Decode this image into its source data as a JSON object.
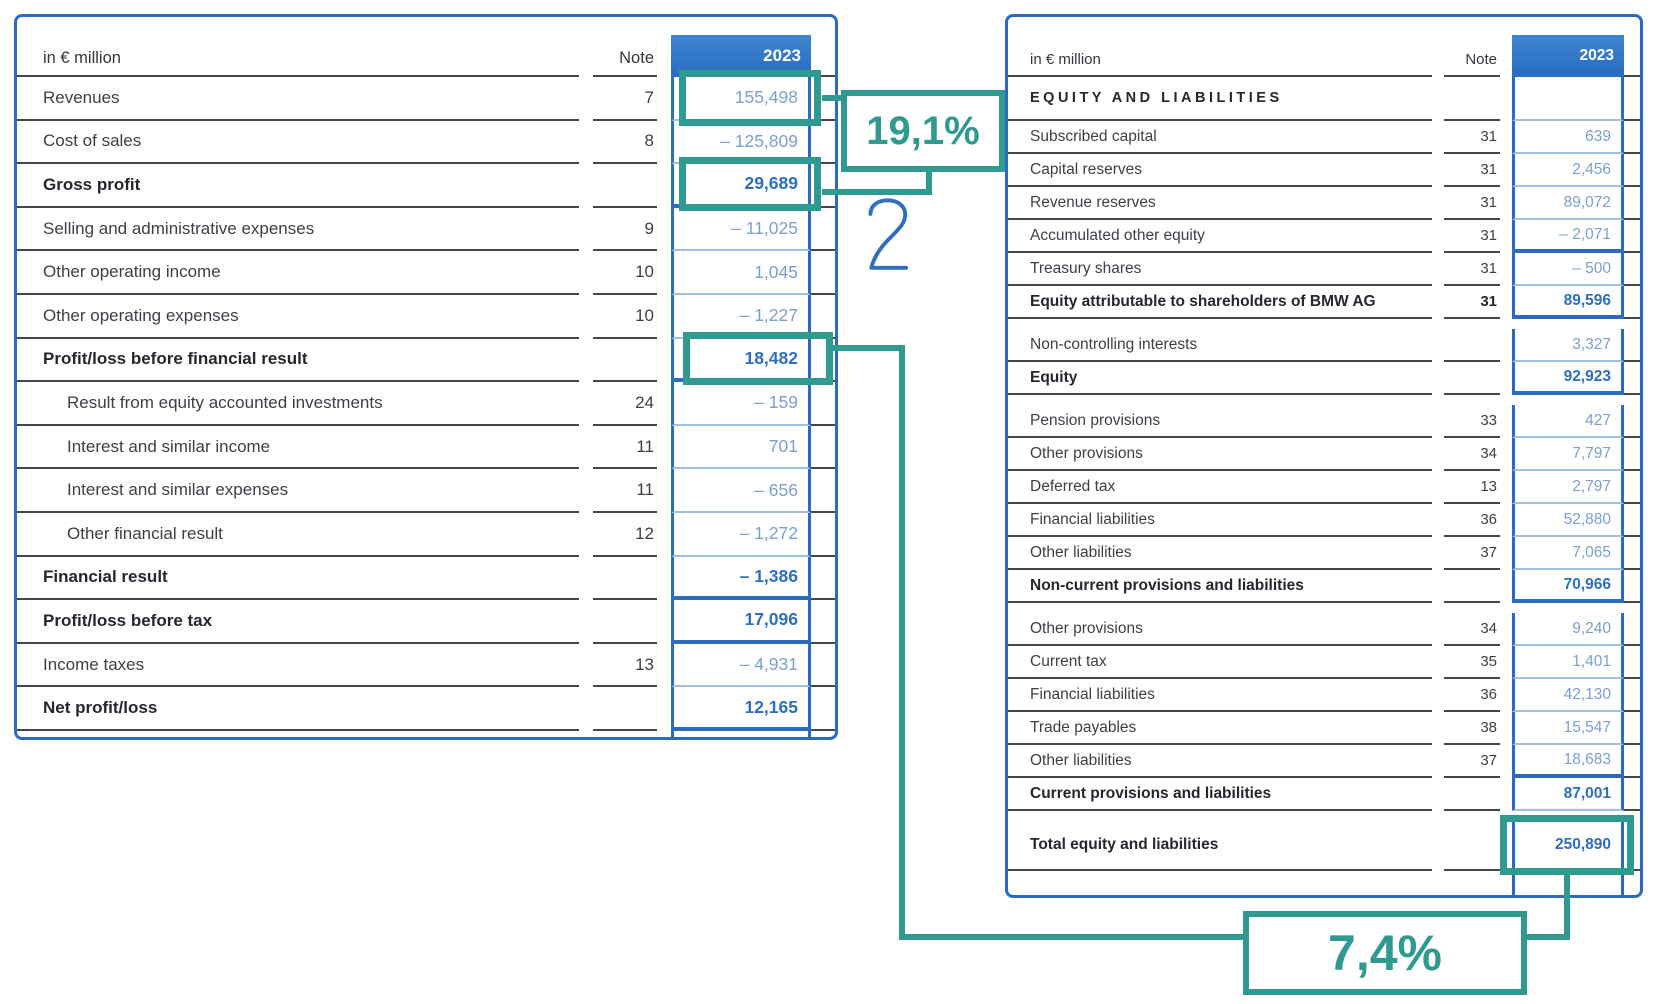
{
  "colors": {
    "table_blue": "#2B6CC1",
    "value_blue": "#7AA0D2",
    "value_bold_blue": "#2E6FC0",
    "accent_teal": "#2E9A90"
  },
  "annotations": {
    "revenue_margin_pct": "19,1%",
    "total_growth_pct": "7,4%",
    "handwritten_note": "2"
  },
  "income_statement": {
    "header": {
      "unit": "in € million",
      "note": "Note",
      "year": "2023"
    },
    "rows": [
      {
        "label": "Revenues",
        "note": "7",
        "value": "155,498",
        "sep": "thin",
        "hl": "box"
      },
      {
        "label": "Cost of sales",
        "note": "8",
        "value": "– 125,809",
        "sep": "thin"
      },
      {
        "label": "Gross profit",
        "note": "",
        "value": "29,689",
        "bold": true,
        "sep": "thick",
        "hl": "box"
      },
      {
        "label": "Selling and administrative expenses",
        "note": "9",
        "value": "– 11,025",
        "sep": "thin"
      },
      {
        "label": "Other operating income",
        "note": "10",
        "value": "1,045",
        "sep": "thin"
      },
      {
        "label": "Other operating expenses",
        "note": "10",
        "value": "– 1,227",
        "sep": "thin"
      },
      {
        "label": "Profit/loss before financial result",
        "note": "",
        "value": "18,482",
        "bold": true,
        "sep": "thick",
        "hl": "box-wide"
      },
      {
        "label": "Result from equity accounted investments",
        "note": "24",
        "value": "– 159",
        "indent": true,
        "sep": "thin"
      },
      {
        "label": "Interest and similar income",
        "note": "11",
        "value": "701",
        "indent": true,
        "sep": "thin"
      },
      {
        "label": "Interest and similar expenses",
        "note": "11",
        "value": "– 656",
        "indent": true,
        "sep": "thin"
      },
      {
        "label": "Other financial result",
        "note": "12",
        "value": "– 1,272",
        "indent": true,
        "sep": "thin"
      },
      {
        "label": "Financial result",
        "note": "",
        "value": "– 1,386",
        "bold": true,
        "sep": "thick"
      },
      {
        "label": "Profit/loss before tax",
        "note": "",
        "value": "17,096",
        "bold": true,
        "sep": "thick"
      },
      {
        "label": "Income taxes",
        "note": "13",
        "value": "– 4,931",
        "sep": "thin"
      },
      {
        "label": "Net profit/loss",
        "note": "",
        "value": "12,165",
        "bold": true,
        "sep": "thick"
      }
    ]
  },
  "balance_sheet": {
    "header": {
      "unit": "in € million",
      "note": "Note",
      "year": "2023"
    },
    "rows": [
      {
        "label": "EQUITY AND LIABILITIES",
        "note": "",
        "value": "",
        "section": true,
        "sep": "thin"
      },
      {
        "label": "Subscribed capital",
        "note": "31",
        "value": "639",
        "sep": "thin"
      },
      {
        "label": "Capital reserves",
        "note": "31",
        "value": "2,456",
        "sep": "thin"
      },
      {
        "label": "Revenue reserves",
        "note": "31",
        "value": "89,072",
        "sep": "thin"
      },
      {
        "label": "Accumulated other equity",
        "note": "31",
        "value": "– 2,071",
        "sep": "thick"
      },
      {
        "label": "Treasury shares",
        "note": "31",
        "value": "– 500",
        "sep": "thin"
      },
      {
        "label": "Equity attributable to shareholders of BMW AG",
        "note": "31",
        "value": "89,596",
        "bold": true,
        "sep": "thick"
      },
      {
        "label": "Non-controlling interests",
        "note": "",
        "value": "3,327",
        "sep": "thin",
        "space": true
      },
      {
        "label": "Equity",
        "note": "",
        "value": "92,923",
        "bold": true,
        "sep": "thick"
      },
      {
        "label": "Pension provisions",
        "note": "33",
        "value": "427",
        "sep": "thin",
        "space": true
      },
      {
        "label": "Other provisions",
        "note": "34",
        "value": "7,797",
        "sep": "thin"
      },
      {
        "label": "Deferred tax",
        "note": "13",
        "value": "2,797",
        "sep": "thin"
      },
      {
        "label": "Financial liabilities",
        "note": "36",
        "value": "52,880",
        "sep": "thin"
      },
      {
        "label": "Other liabilities",
        "note": "37",
        "value": "7,065",
        "sep": "thin"
      },
      {
        "label": "Non-current provisions and liabilities",
        "note": "",
        "value": "70,966",
        "bold": true,
        "sep": "thick"
      },
      {
        "label": "Other provisions",
        "note": "34",
        "value": "9,240",
        "sep": "thin",
        "space": true
      },
      {
        "label": "Current tax",
        "note": "35",
        "value": "1,401",
        "sep": "thin"
      },
      {
        "label": "Financial liabilities",
        "note": "36",
        "value": "42,130",
        "sep": "thin"
      },
      {
        "label": "Trade payables",
        "note": "38",
        "value": "15,547",
        "sep": "thin"
      },
      {
        "label": "Other liabilities",
        "note": "37",
        "value": "18,683",
        "sep": "thick"
      },
      {
        "label": "Current provisions and liabilities",
        "note": "",
        "value": "87,001",
        "bold": true,
        "sep": "thin"
      },
      {
        "label": "Total equity and liabilities",
        "note": "",
        "value": "250,890",
        "bold": true,
        "sep": "thin",
        "space": true,
        "tall": true,
        "hl": "box"
      }
    ]
  }
}
